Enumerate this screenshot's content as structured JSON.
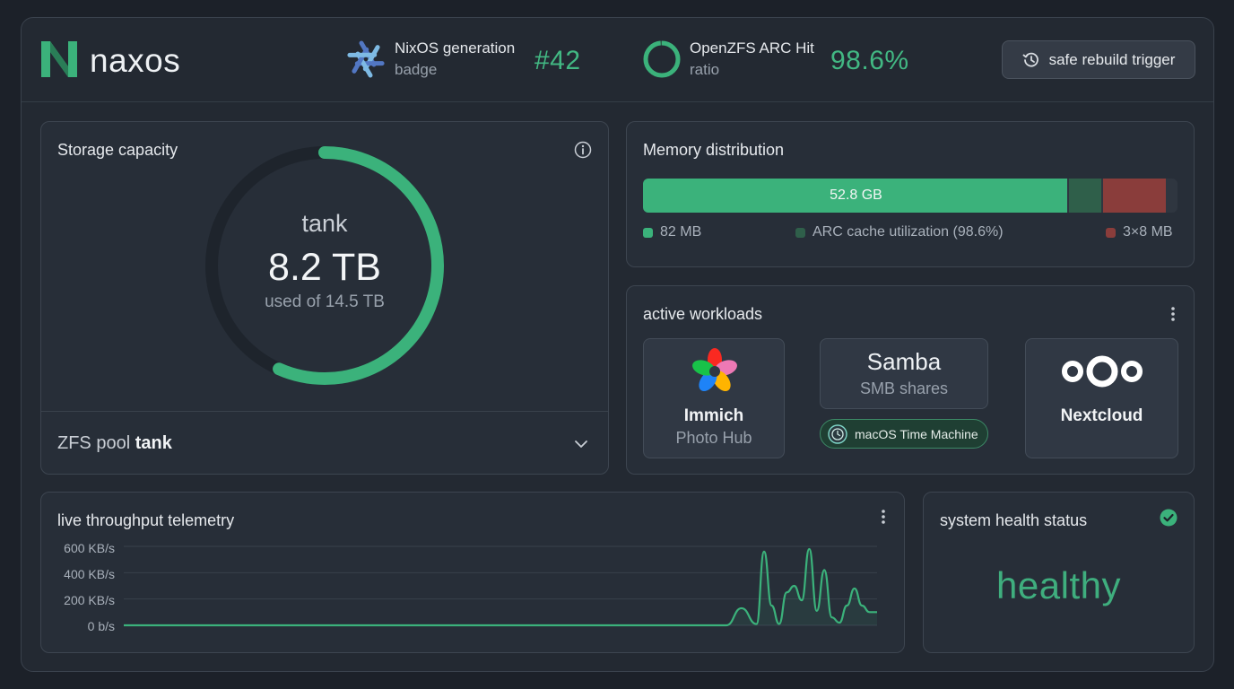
{
  "header": {
    "brand": "naxos",
    "generation_label": "NixOS generation",
    "generation_sub": "badge",
    "generation_value": "#42",
    "arc_label": "OpenZFS ARC Hit",
    "arc_sub": "ratio",
    "arc_value": "98.6%",
    "rebuild_button": "safe rebuild trigger"
  },
  "storage": {
    "title": "Storage capacity",
    "pool_name": "tank",
    "used": "8.2 TB",
    "of_label": "used of 14.5 TB",
    "used_fraction": 0.566,
    "pool_row_prefix": "ZFS pool",
    "pool_row_name": "tank"
  },
  "memory": {
    "title": "Memory distribution",
    "bar_label": "52.8 GB",
    "segments": [
      {
        "fraction": 0.797,
        "color": "#3bb27b"
      },
      {
        "fraction": 0.063,
        "color": "#2f5f4a"
      },
      {
        "fraction": 0.118,
        "color": "#8a3d3b"
      }
    ],
    "legend": [
      {
        "label": "82 MB",
        "color": "#3bb27b"
      },
      {
        "label": "ARC cache utilization (98.6%)",
        "color": "#2f5f4a"
      },
      {
        "label": "3×8 MB",
        "color": "#8a3d3b"
      }
    ]
  },
  "workloads": {
    "title": "active workloads",
    "immich_name": "Immich",
    "immich_sub": "Photo Hub",
    "samba_name": "Samba",
    "samba_sub": "SMB shares",
    "timemachine": "macOS Time Machine",
    "nextcloud_name": "Nextcloud"
  },
  "telemetry": {
    "title": "live throughput telemetry",
    "y_ticks": [
      "600 KB/s",
      "400 KB/s",
      "200 KB/s",
      "0 b/s"
    ],
    "line_color": "#3bb27b"
  },
  "chart_data": {
    "type": "line",
    "title": "live throughput telemetry",
    "ylabel": "",
    "xlabel": "",
    "y_unit": "KB/s",
    "ylim": [
      0,
      600
    ],
    "y_ticks": [
      0,
      200,
      400,
      600
    ],
    "grid": true,
    "x": [
      0,
      5,
      10,
      15,
      20,
      25,
      30,
      35,
      40,
      45,
      50,
      55,
      60,
      65,
      70,
      75,
      80,
      82,
      84,
      85,
      86,
      87,
      88,
      89,
      90,
      91,
      92,
      93,
      94,
      95,
      96,
      97,
      98,
      99,
      100
    ],
    "series": [
      {
        "values": [
          0,
          0,
          0,
          0,
          0,
          0,
          0,
          0,
          0,
          0,
          0,
          0,
          0,
          0,
          0,
          0,
          0,
          130,
          10,
          560,
          150,
          10,
          250,
          300,
          190,
          580,
          110,
          420,
          60,
          20,
          150,
          280,
          150,
          100,
          100
        ]
      }
    ]
  },
  "health": {
    "title": "system health status",
    "value": "healthy"
  }
}
